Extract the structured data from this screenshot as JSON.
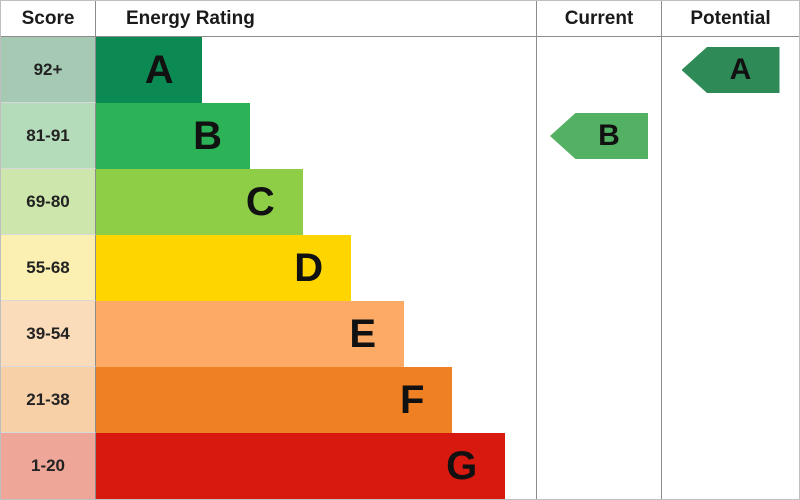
{
  "header": {
    "score": "Score",
    "rating": "Energy Rating",
    "current": "Current",
    "potential": "Potential"
  },
  "chart_data": {
    "type": "bar",
    "title": "Energy Rating",
    "categories": [
      "A",
      "B",
      "C",
      "D",
      "E",
      "F",
      "G"
    ],
    "bands": [
      {
        "score": "92+",
        "letter": "A",
        "color": "#0c8a53",
        "tint": "#a5c9b3",
        "width_pct": 24
      },
      {
        "score": "81-91",
        "letter": "B",
        "color": "#2cb358",
        "tint": "#b5dcba",
        "width_pct": 35
      },
      {
        "score": "69-80",
        "letter": "C",
        "color": "#8dce46",
        "tint": "#cde6ab",
        "width_pct": 47
      },
      {
        "score": "55-68",
        "letter": "D",
        "color": "#ffd500",
        "tint": "#fbefb2",
        "width_pct": 58
      },
      {
        "score": "39-54",
        "letter": "E",
        "color": "#fcaa65",
        "tint": "#fbdcba",
        "width_pct": 70
      },
      {
        "score": "21-38",
        "letter": "F",
        "color": "#ef8023",
        "tint": "#f8d0a8",
        "width_pct": 81
      },
      {
        "score": "1-20",
        "letter": "G",
        "color": "#d8190f",
        "tint": "#eda698",
        "width_pct": 93
      }
    ],
    "current": {
      "letter": "B",
      "band_index": 1,
      "color": "#53b163"
    },
    "potential": {
      "letter": "A",
      "band_index": 0,
      "color": "#2e8b57"
    }
  }
}
